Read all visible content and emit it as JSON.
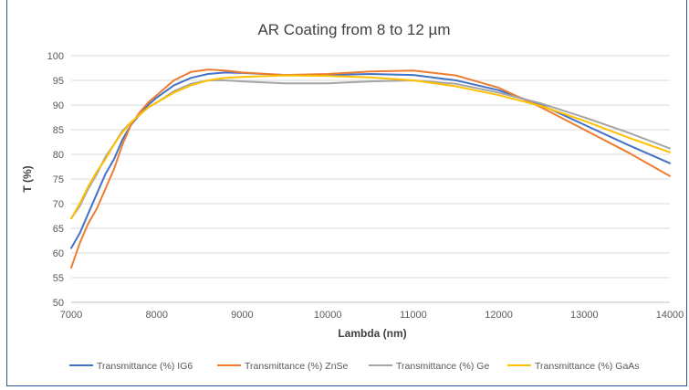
{
  "chart_data": {
    "type": "line",
    "title": "AR Coating from 8 to 12 µm",
    "xlabel": "Lambda (nm)",
    "ylabel": "T (%)",
    "xlim": [
      7000,
      14000
    ],
    "ylim": [
      50,
      100
    ],
    "x_ticks": [
      "7000",
      "8000",
      "9000",
      "10000",
      "11000",
      "12000",
      "13000",
      "14000"
    ],
    "y_ticks": [
      "50",
      "55",
      "60",
      "65",
      "70",
      "75",
      "80",
      "85",
      "90",
      "95",
      "100"
    ],
    "grid": "horizontal",
    "legend_position": "bottom",
    "series": [
      {
        "name": "Transmittance (%) IG6",
        "color": "#4472c4",
        "points": [
          [
            7000,
            61
          ],
          [
            7100,
            64
          ],
          [
            7200,
            68
          ],
          [
            7300,
            72
          ],
          [
            7400,
            76
          ],
          [
            7500,
            79
          ],
          [
            7600,
            83
          ],
          [
            7700,
            86
          ],
          [
            7800,
            88
          ],
          [
            7900,
            90
          ],
          [
            8000,
            91.5
          ],
          [
            8200,
            94
          ],
          [
            8400,
            95.5
          ],
          [
            8600,
            96.3
          ],
          [
            8800,
            96.6
          ],
          [
            9000,
            96.5
          ],
          [
            9500,
            96.1
          ],
          [
            10000,
            96.1
          ],
          [
            10500,
            96.3
          ],
          [
            11000,
            96.1
          ],
          [
            11500,
            95
          ],
          [
            12000,
            93
          ],
          [
            12500,
            90
          ],
          [
            13000,
            86
          ],
          [
            13500,
            82
          ],
          [
            14000,
            78.2
          ]
        ]
      },
      {
        "name": "Transmittance (%) ZnSe",
        "color": "#ed7d31",
        "points": [
          [
            7000,
            57
          ],
          [
            7100,
            62
          ],
          [
            7200,
            66
          ],
          [
            7300,
            69
          ],
          [
            7400,
            73
          ],
          [
            7500,
            77
          ],
          [
            7600,
            82
          ],
          [
            7700,
            86
          ],
          [
            7800,
            88.5
          ],
          [
            7900,
            90.5
          ],
          [
            8000,
            92
          ],
          [
            8200,
            95
          ],
          [
            8400,
            96.7
          ],
          [
            8600,
            97.2
          ],
          [
            8800,
            97
          ],
          [
            9000,
            96.6
          ],
          [
            9500,
            96.1
          ],
          [
            10000,
            96.3
          ],
          [
            10500,
            96.8
          ],
          [
            11000,
            97
          ],
          [
            11500,
            96
          ],
          [
            12000,
            93.5
          ],
          [
            12500,
            89.5
          ],
          [
            13000,
            85
          ],
          [
            13500,
            80.5
          ],
          [
            14000,
            75.6
          ]
        ]
      },
      {
        "name": "Transmittance (%) Ge",
        "color": "#a5a5a5",
        "points": [
          [
            7000,
            67
          ],
          [
            7100,
            69.5
          ],
          [
            7200,
            73
          ],
          [
            7300,
            76
          ],
          [
            7400,
            79.5
          ],
          [
            7500,
            82
          ],
          [
            7600,
            84.8
          ],
          [
            7700,
            86.5
          ],
          [
            7800,
            88
          ],
          [
            7900,
            89.5
          ],
          [
            8000,
            90.5
          ],
          [
            8200,
            92.8
          ],
          [
            8400,
            94.3
          ],
          [
            8600,
            95
          ],
          [
            8800,
            95
          ],
          [
            9000,
            94.8
          ],
          [
            9500,
            94.4
          ],
          [
            10000,
            94.4
          ],
          [
            10500,
            94.8
          ],
          [
            11000,
            95
          ],
          [
            11500,
            94.3
          ],
          [
            12000,
            92.5
          ],
          [
            12500,
            90.3
          ],
          [
            13000,
            87.5
          ],
          [
            13500,
            84.5
          ],
          [
            14000,
            81.2
          ]
        ]
      },
      {
        "name": "Transmittance (%) GaAs",
        "color": "#ffc000",
        "points": [
          [
            7000,
            67
          ],
          [
            7100,
            70
          ],
          [
            7200,
            73.5
          ],
          [
            7300,
            76.5
          ],
          [
            7400,
            79
          ],
          [
            7500,
            82
          ],
          [
            7600,
            84.5
          ],
          [
            7700,
            86.5
          ],
          [
            7800,
            88
          ],
          [
            7900,
            89.5
          ],
          [
            8000,
            90.5
          ],
          [
            8200,
            92.5
          ],
          [
            8400,
            94
          ],
          [
            8600,
            95
          ],
          [
            8800,
            95.5
          ],
          [
            9000,
            95.7
          ],
          [
            9500,
            96
          ],
          [
            10000,
            95.9
          ],
          [
            10500,
            95.6
          ],
          [
            11000,
            95
          ],
          [
            11500,
            93.8
          ],
          [
            12000,
            92
          ],
          [
            12500,
            89.8
          ],
          [
            13000,
            86.8
          ],
          [
            13500,
            83.5
          ],
          [
            14000,
            80.4
          ]
        ]
      }
    ]
  }
}
